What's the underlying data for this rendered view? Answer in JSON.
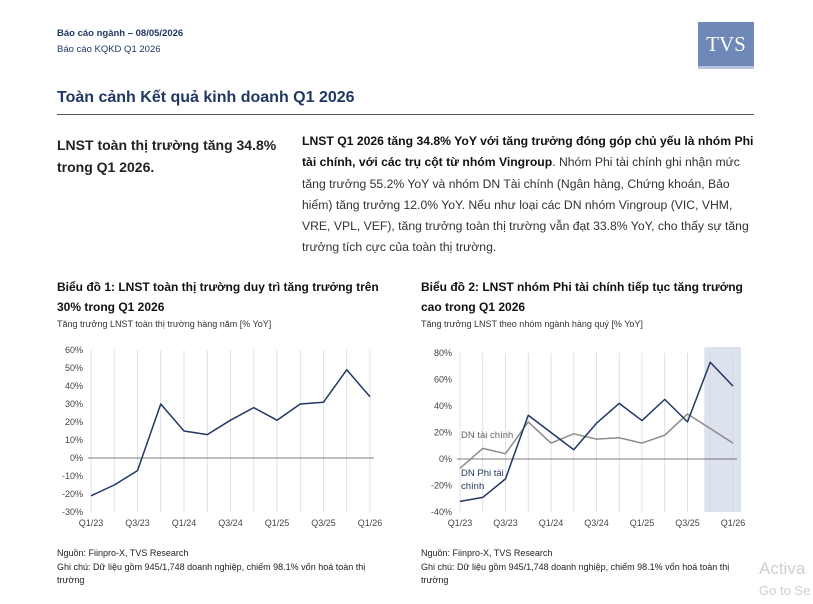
{
  "header": {
    "report_line": "Báo cáo ngành – 08/05/2026",
    "subtitle": "Báo cáo KQKD Q1 2026",
    "logo": "TVS"
  },
  "section": {
    "title": "Toàn cảnh Kết quả kinh doanh Q1 2026"
  },
  "summary": {
    "headline": "LNST toàn thị trường tăng 34.8% trong Q1 2026.",
    "bold_lead": "LNST Q1 2026 tăng 34.8% YoY với tăng trưởng đóng góp chủ yếu là nhóm Phi tài chính, với các trụ cột từ nhóm Vingroup",
    "body": ". Nhóm Phi tài chính ghi nhận mức tăng trưởng 55.2% YoY và nhóm DN Tài chính (Ngân hàng, Chứng khoán, Bảo hiểm) tăng trưởng 12.0% YoY. Nếu như loại các DN nhóm Vingroup (VIC, VHM, VRE, VPL, VEF), tăng trưởng toàn thị trường vẫn đạt 33.8% YoY, cho thấy sự tăng trưởng tích cực của toàn thị trường."
  },
  "charts": {
    "left": {
      "title": "Biểu đồ 1: LNST toàn thị trường duy trì tăng trưởng trên 30% trong Q1 2026",
      "subtitle": "Tăng trưởng LNST toàn thị trường hàng năm [% YoY]",
      "source": "Nguồn: Fiinpro-X, TVS Research",
      "note": "Ghi chú: Dữ liệu gồm 945/1,748 doanh nghiệp, chiếm 98.1% vốn hoá toàn thị trường"
    },
    "right": {
      "title": "Biểu đồ 2: LNST nhóm Phi tài chính tiếp tục tăng trưởng cao trong Q1 2026",
      "subtitle": "Tăng trưởng LNST theo nhóm ngành hàng quý [% YoY]",
      "source": "Nguồn: Fiinpro-X, TVS Research",
      "note": "Ghi chú: Dữ liệu gồm 945/1,748 doanh nghiệp, chiếm 98.1% vốn hoá toàn thị trường",
      "label_fin": "DN tài chính",
      "label_nonfin": "DN Phi tài chính"
    }
  },
  "chart_data": [
    {
      "type": "line",
      "x": [
        "Q1/23",
        "Q2/23",
        "Q3/23",
        "Q4/23",
        "Q1/24",
        "Q2/24",
        "Q3/24",
        "Q4/24",
        "Q1/25",
        "Q2/25",
        "Q3/25",
        "Q4/25",
        "Q1/26"
      ],
      "x_tick_labels": [
        "Q1/23",
        "Q3/23",
        "Q1/24",
        "Q3/24",
        "Q1/25",
        "Q3/25",
        "Q1/26"
      ],
      "series": [
        {
          "values": [
            -21,
            -15,
            -7,
            30,
            15,
            13,
            21,
            28,
            21,
            30,
            31,
            49,
            34
          ],
          "color": "#1f3864"
        }
      ],
      "y_ticks": [
        -30,
        -20,
        -10,
        0,
        10,
        20,
        30,
        40,
        50,
        60
      ],
      "ylim": [
        -30,
        60
      ],
      "y_unit": "%",
      "grid": "vertical"
    },
    {
      "type": "line",
      "x": [
        "Q1/23",
        "Q2/23",
        "Q3/23",
        "Q4/23",
        "Q1/24",
        "Q2/24",
        "Q3/24",
        "Q4/24",
        "Q1/25",
        "Q2/25",
        "Q3/25",
        "Q4/25",
        "Q1/26"
      ],
      "x_tick_labels": [
        "Q1/23",
        "Q3/23",
        "Q1/24",
        "Q3/24",
        "Q1/25",
        "Q3/25",
        "Q1/26"
      ],
      "series": [
        {
          "name": "DN Phi tài chính",
          "values": [
            -32,
            -29,
            -15,
            33,
            20,
            7,
            27,
            42,
            29,
            45,
            28,
            73,
            55
          ],
          "color": "#1f3864"
        },
        {
          "name": "DN tài chính",
          "values": [
            -7,
            8,
            4,
            28,
            12,
            19,
            15,
            16,
            12,
            18,
            34,
            23,
            12
          ],
          "color": "#8c8c8c"
        }
      ],
      "y_ticks": [
        -40,
        -20,
        0,
        20,
        40,
        60,
        80
      ],
      "ylim": [
        -40,
        80
      ],
      "y_unit": "%",
      "highlight_last_periods": 2,
      "highlight_color": "#dde2ef",
      "grid": "vertical"
    }
  ],
  "watermark": {
    "line1": "Activa",
    "line2": "Go to Se"
  }
}
